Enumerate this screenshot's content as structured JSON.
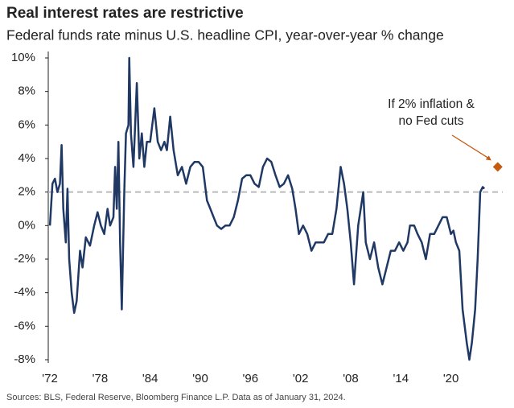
{
  "chart_data": {
    "type": "line",
    "title": "Real interest rates are restrictive",
    "subtitle": "Federal funds rate minus U.S. headline CPI, year-over-year % change",
    "source": "Sources: BLS, Federal Reserve, Bloomberg Finance L.P. Data as of January 31, 2024.",
    "xlim": [
      1971.8,
      2026.2
    ],
    "ylim": [
      -8,
      10
    ],
    "xticks": [
      {
        "value": 1972,
        "label": "'72"
      },
      {
        "value": 1978,
        "label": "'78"
      },
      {
        "value": 1984,
        "label": "'84"
      },
      {
        "value": 1990,
        "label": "'90"
      },
      {
        "value": 1996,
        "label": "'96"
      },
      {
        "value": 2002,
        "label": "'02"
      },
      {
        "value": 2008,
        "label": "'08"
      },
      {
        "value": 2014,
        "label": "'14"
      },
      {
        "value": 2020,
        "label": "'20"
      }
    ],
    "yticks": [
      {
        "value": 10,
        "label": "10%"
      },
      {
        "value": 8,
        "label": "8%"
      },
      {
        "value": 6,
        "label": "6%"
      },
      {
        "value": 4,
        "label": "4%"
      },
      {
        "value": 2,
        "label": "2%"
      },
      {
        "value": 0,
        "label": "0%"
      },
      {
        "value": -2,
        "label": "-2%"
      },
      {
        "value": -4,
        "label": "-4%"
      },
      {
        "value": -6,
        "label": "-6%"
      },
      {
        "value": -8,
        "label": "-8%"
      }
    ],
    "reference_line": 2,
    "reference_color": "#bbbbbb",
    "series": [
      {
        "color": "#1f3864",
        "x": [
          1972.0,
          1972.3,
          1972.6,
          1972.9,
          1973.2,
          1973.4,
          1973.6,
          1973.9,
          1974.1,
          1974.3,
          1974.6,
          1974.9,
          1975.2,
          1975.6,
          1975.9,
          1976.3,
          1976.8,
          1977.3,
          1977.7,
          1978.1,
          1978.5,
          1978.9,
          1979.2,
          1979.6,
          1979.8,
          1980.0,
          1980.2,
          1980.4,
          1980.6,
          1980.9,
          1981.1,
          1981.4,
          1981.5,
          1981.7,
          1982.0,
          1982.4,
          1982.7,
          1983.0,
          1983.3,
          1983.6,
          1984.0,
          1984.5,
          1984.9,
          1985.3,
          1985.7,
          1986.0,
          1986.4,
          1986.8,
          1987.3,
          1987.8,
          1988.3,
          1988.8,
          1989.3,
          1989.8,
          1990.3,
          1990.8,
          1991.2,
          1991.6,
          1992.0,
          1992.5,
          1993.0,
          1993.5,
          1994.0,
          1994.5,
          1995.0,
          1995.5,
          1996.0,
          1996.5,
          1997.0,
          1997.5,
          1998.0,
          1998.5,
          1999.0,
          1999.5,
          2000.0,
          2000.5,
          2001.0,
          2001.4,
          2001.8,
          2002.3,
          2002.8,
          2003.3,
          2003.8,
          2004.3,
          2004.8,
          2005.3,
          2005.8,
          2006.3,
          2006.8,
          2007.2,
          2007.6,
          2008.0,
          2008.4,
          2008.9,
          2009.5,
          2009.8,
          2010.3,
          2010.8,
          2011.3,
          2011.8,
          2012.3,
          2012.8,
          2013.3,
          2013.8,
          2014.3,
          2014.8,
          2015.1,
          2015.6,
          2016.0,
          2016.5,
          2017.0,
          2017.5,
          2018.0,
          2018.5,
          2019.0,
          2019.5,
          2020.0,
          2020.3,
          2020.6,
          2021.0,
          2021.4,
          2021.9,
          2022.2,
          2022.5,
          2022.9,
          2023.2,
          2023.5,
          2023.8,
          2024.0
        ],
        "values": [
          0,
          2.5,
          2.8,
          2,
          2.5,
          4.8,
          1,
          -1,
          2.2,
          -2,
          -4,
          -5.2,
          -4.5,
          -1.5,
          -2.5,
          -0.7,
          -1.2,
          0,
          0.8,
          0,
          -0.5,
          1,
          0,
          0.5,
          3.5,
          1,
          5,
          -1,
          -5,
          2,
          5.5,
          6,
          10,
          5.5,
          3.5,
          8.5,
          4,
          5.5,
          3.5,
          5,
          5,
          7,
          5,
          4.5,
          5,
          4.5,
          6.5,
          4.5,
          3,
          3.5,
          2.5,
          3.5,
          3.8,
          3.8,
          3.5,
          1.5,
          1,
          0.5,
          0,
          -0.2,
          0,
          0,
          0.5,
          1.5,
          2.8,
          3,
          3,
          2.5,
          2.3,
          3.5,
          4,
          3.8,
          3,
          2.3,
          2.5,
          3,
          2.2,
          1,
          -0.5,
          0,
          -0.5,
          -1.5,
          -1,
          -1,
          -1,
          -0.5,
          -0.5,
          1,
          3.5,
          2.5,
          1,
          -1,
          -3.5,
          0,
          2,
          -1,
          -2,
          -1,
          -2.5,
          -3.5,
          -2.5,
          -1.5,
          -1.5,
          -1,
          -1.5,
          -1,
          0,
          0,
          -0.5,
          -1,
          -2,
          -0.5,
          -0.5,
          0,
          0.5,
          0.5,
          -0.5,
          -0.3,
          -1,
          -1.5,
          -5,
          -7,
          -8,
          -7,
          -5,
          -2,
          2,
          2.3,
          2.2
        ]
      }
    ],
    "annotation": {
      "text": [
        "If 2% inflation &",
        "no Fed cuts"
      ],
      "x": 2025.6,
      "y": 3.5,
      "color": "#c55a11"
    }
  }
}
